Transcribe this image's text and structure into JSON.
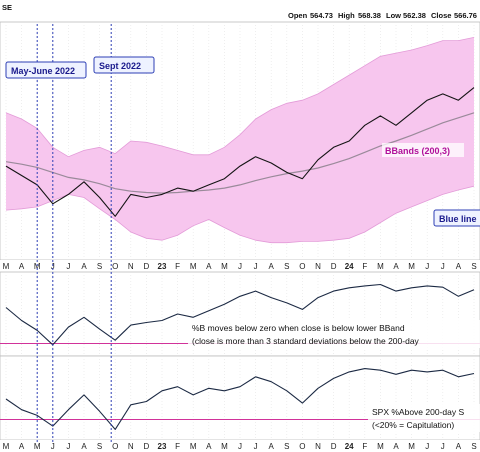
{
  "header": {
    "title_fragment": "SE",
    "open_label": "Open",
    "open_value": "564.73",
    "high_label": "High",
    "high_value": "568.38",
    "low_label": "Low",
    "low_value": "562.38",
    "close_label": "Close",
    "close_value": "566.76"
  },
  "callouts": {
    "may_june": "May-June 2022",
    "sept": "Sept 2022",
    "bbands": "BBands (200,3)",
    "blue_line": "Blue line"
  },
  "annotations": {
    "pctb_line1": "%B moves below zero when close is below lower BBand",
    "pctb_line2": "(close is more than 3 standard deviations below the 200-day",
    "spx_line1": "SPX %Above 200-day S",
    "spx_line2": "(<20% = Capitulation)"
  },
  "colors": {
    "band_fill": "#f7c6ee",
    "band_edge": "#e39bd8",
    "price_line": "#141414",
    "ma_line": "#9a8a9a",
    "indicator_line": "#1c2a44",
    "threshold_line": "#d1329a",
    "event_line": "#2d3fb5",
    "callout_box_bg": "#eef2ff",
    "callout_box_border": "#2d3fb5"
  },
  "chart_data": [
    {
      "type": "line",
      "x": [
        "2022-03",
        "2022-04",
        "2022-05",
        "2022-06",
        "2022-07",
        "2022-08",
        "2022-09",
        "2022-10",
        "2022-11",
        "2022-12",
        "2023-01",
        "2023-02",
        "2023-03",
        "2023-04",
        "2023-05",
        "2023-06",
        "2023-07",
        "2023-08",
        "2023-09",
        "2023-10",
        "2023-11",
        "2023-12",
        "2024-01",
        "2024-02",
        "2024-03",
        "2024-04",
        "2024-05",
        "2024-06",
        "2024-07",
        "2024-08",
        "2024-09"
      ],
      "x_tick_labels": [
        "M",
        "A",
        "M",
        "J",
        "J",
        "A",
        "S",
        "O",
        "N",
        "D",
        "23",
        "F",
        "M",
        "A",
        "M",
        "J",
        "J",
        "A",
        "S",
        "O",
        "N",
        "D",
        "24",
        "F",
        "M",
        "A",
        "M",
        "J",
        "J",
        "A",
        "S"
      ],
      "series": [
        {
          "values": [
            440,
            425,
            410,
            380,
            395,
            415,
            390,
            360,
            395,
            390,
            395,
            405,
            400,
            410,
            420,
            440,
            455,
            445,
            430,
            420,
            450,
            470,
            480,
            505,
            520,
            505,
            525,
            545,
            555,
            545,
            565
          ]
        },
        {
          "values": [
            447,
            443,
            438,
            430,
            422,
            418,
            412,
            404,
            400,
            398,
            397,
            398,
            400,
            402,
            405,
            410,
            417,
            423,
            428,
            432,
            437,
            444,
            452,
            462,
            472,
            480,
            489,
            499,
            509,
            517,
            525
          ]
        },
        {
          "values": [
            525,
            515,
            500,
            470,
            455,
            465,
            470,
            460,
            480,
            478,
            472,
            465,
            458,
            458,
            470,
            490,
            515,
            530,
            540,
            545,
            555,
            570,
            585,
            600,
            615,
            620,
            625,
            632,
            640,
            640,
            645
          ]
        },
        {
          "values": [
            370,
            372,
            375,
            385,
            395,
            390,
            372,
            355,
            335,
            325,
            322,
            330,
            345,
            355,
            342,
            330,
            322,
            318,
            318,
            320,
            320,
            322,
            325,
            335,
            350,
            365,
            375,
            385,
            395,
            402,
            408
          ]
        }
      ]
    },
    {
      "type": "line",
      "x": [
        "2022-03",
        "2022-04",
        "2022-05",
        "2022-06",
        "2022-07",
        "2022-08",
        "2022-09",
        "2022-10",
        "2022-11",
        "2022-12",
        "2023-01",
        "2023-02",
        "2023-03",
        "2023-04",
        "2023-05",
        "2023-06",
        "2023-07",
        "2023-08",
        "2023-09",
        "2023-10",
        "2023-11",
        "2023-12",
        "2024-01",
        "2024-02",
        "2024-03",
        "2024-04",
        "2024-05",
        "2024-06",
        "2024-07",
        "2024-08",
        "2024-09"
      ],
      "series": [
        {
          "values": [
            0.55,
            0.35,
            0.2,
            -0.02,
            0.25,
            0.4,
            0.22,
            0.05,
            0.28,
            0.32,
            0.35,
            0.45,
            0.4,
            0.5,
            0.6,
            0.72,
            0.8,
            0.7,
            0.62,
            0.52,
            0.7,
            0.8,
            0.85,
            0.88,
            0.9,
            0.8,
            0.85,
            0.88,
            0.86,
            0.72,
            0.82
          ]
        }
      ],
      "threshold": 0
    },
    {
      "type": "line",
      "x": [
        "2022-03",
        "2022-04",
        "2022-05",
        "2022-06",
        "2022-07",
        "2022-08",
        "2022-09",
        "2022-10",
        "2022-11",
        "2022-12",
        "2023-01",
        "2023-02",
        "2023-03",
        "2023-04",
        "2023-05",
        "2023-06",
        "2023-07",
        "2023-08",
        "2023-09",
        "2023-10",
        "2023-11",
        "2023-12",
        "2024-01",
        "2024-02",
        "2024-03",
        "2024-04",
        "2024-05",
        "2024-06",
        "2024-07",
        "2024-08",
        "2024-09"
      ],
      "series": [
        {
          "values": [
            45,
            32,
            25,
            12,
            32,
            50,
            30,
            8,
            38,
            42,
            55,
            60,
            50,
            58,
            55,
            60,
            72,
            66,
            55,
            40,
            58,
            70,
            78,
            82,
            80,
            75,
            80,
            78,
            80,
            72,
            76
          ]
        }
      ],
      "threshold": 20
    }
  ]
}
